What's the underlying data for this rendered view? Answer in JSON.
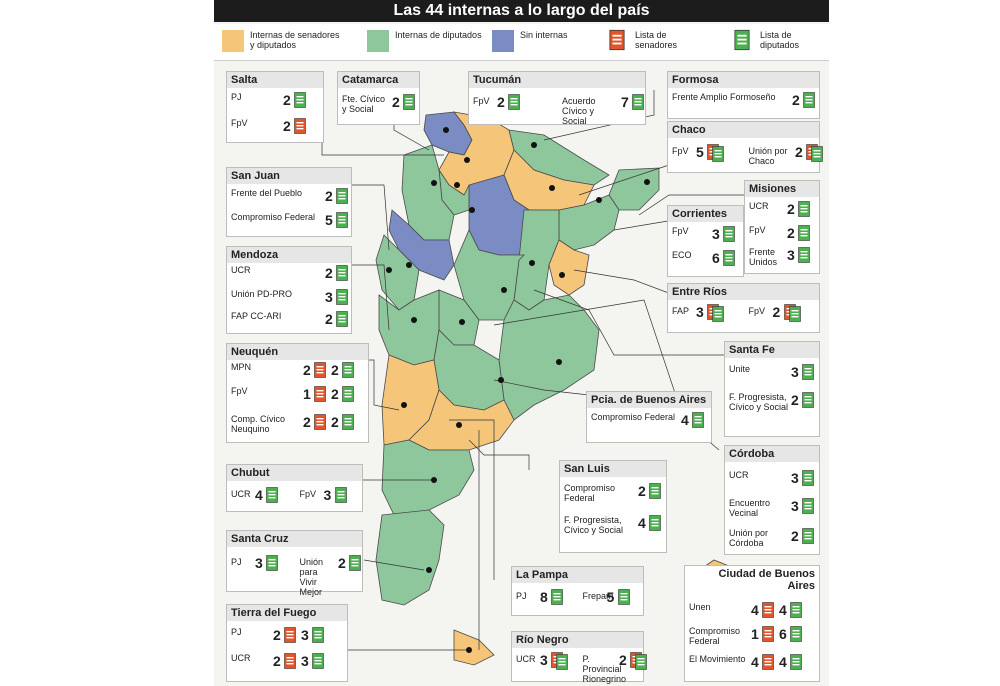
{
  "title": "Las 44 internas a lo largo del país",
  "legend": [
    {
      "label": "Internas de senadores y diputados",
      "color": "#f5c57a",
      "icon": "swatch"
    },
    {
      "label": "Internas de diputados",
      "color": "#8fc79c",
      "icon": "swatch"
    },
    {
      "label": "Sin internas",
      "color": "#7b8bc4",
      "icon": "swatch"
    },
    {
      "label": "Lista de senadores",
      "color": "#e0552b",
      "icon": "document-icon"
    },
    {
      "label": "Lista de diputados",
      "color": "#4caf50",
      "icon": "document-icon"
    }
  ],
  "provinces": {
    "salta": {
      "name": "Salta",
      "rows": [
        {
          "label": "PJ",
          "items": [
            {
              "n": "2",
              "type": "dip"
            }
          ]
        },
        {
          "label": "FpV",
          "items": [
            {
              "n": "2",
              "type": "sen"
            }
          ]
        }
      ]
    },
    "catamarca": {
      "name": "Catamarca",
      "rows": [
        {
          "label": "Fte. Cívico y Social",
          "items": [
            {
              "n": "2",
              "type": "dip"
            }
          ]
        }
      ]
    },
    "tucuman": {
      "name": "Tucumán",
      "rows": [
        {
          "label": "FpV",
          "items": [
            {
              "n": "2",
              "type": "dip"
            }
          ]
        },
        {
          "label": "Acuerdo Cívico y Social",
          "items": [
            {
              "n": "7",
              "type": "dip"
            }
          ]
        }
      ]
    },
    "formosa": {
      "name": "Formosa",
      "rows": [
        {
          "label": "Frente Amplio Formoseño",
          "items": [
            {
              "n": "2",
              "type": "dip"
            }
          ]
        }
      ]
    },
    "chaco": {
      "name": "Chaco",
      "rows": [
        {
          "label": "FpV",
          "items": [
            {
              "n": "5",
              "type": "both"
            }
          ]
        },
        {
          "label": "Unión por Chaco",
          "items": [
            {
              "n": "2",
              "type": "both"
            }
          ]
        }
      ]
    },
    "sanjuan": {
      "name": "San Juan",
      "rows": [
        {
          "label": "Frente del Pueblo",
          "items": [
            {
              "n": "2",
              "type": "dip"
            }
          ]
        },
        {
          "label": "Compromiso Federal",
          "items": [
            {
              "n": "5",
              "type": "dip"
            }
          ]
        }
      ]
    },
    "misiones": {
      "name": "Misiones",
      "rows": [
        {
          "label": "UCR",
          "items": [
            {
              "n": "2",
              "type": "dip"
            }
          ]
        },
        {
          "label": "FpV",
          "items": [
            {
              "n": "2",
              "type": "dip"
            }
          ]
        },
        {
          "label": "Frente Unidos",
          "items": [
            {
              "n": "3",
              "type": "dip"
            }
          ]
        }
      ]
    },
    "corrientes": {
      "name": "Corrientes",
      "rows": [
        {
          "label": "FpV",
          "items": [
            {
              "n": "3",
              "type": "dip"
            }
          ]
        },
        {
          "label": "ECO",
          "items": [
            {
              "n": "6",
              "type": "dip"
            }
          ]
        }
      ]
    },
    "mendoza": {
      "name": "Mendoza",
      "rows": [
        {
          "label": "UCR",
          "items": [
            {
              "n": "2",
              "type": "dip"
            }
          ]
        },
        {
          "label": "Unión PD-PRO",
          "items": [
            {
              "n": "3",
              "type": "dip"
            }
          ]
        },
        {
          "label": "FAP CC-ARI",
          "items": [
            {
              "n": "2",
              "type": "dip"
            }
          ]
        }
      ]
    },
    "entrerios": {
      "name": "Entre Ríos",
      "rows": [
        {
          "label": "FAP",
          "items": [
            {
              "n": "3",
              "type": "both"
            }
          ]
        },
        {
          "label": "FpV",
          "items": [
            {
              "n": "2",
              "type": "both"
            }
          ]
        }
      ]
    },
    "neuquen": {
      "name": "Neuquén",
      "rows": [
        {
          "label": "MPN",
          "items": [
            {
              "n": "2",
              "type": "sen"
            },
            {
              "n": "2",
              "type": "dip"
            }
          ]
        },
        {
          "label": "FpV",
          "items": [
            {
              "n": "1",
              "type": "sen"
            },
            {
              "n": "2",
              "type": "dip"
            }
          ]
        },
        {
          "label": "Comp. Cívico Neuquino",
          "items": [
            {
              "n": "2",
              "type": "sen"
            },
            {
              "n": "2",
              "type": "dip"
            }
          ]
        }
      ]
    },
    "santafe": {
      "name": "Santa Fe",
      "rows": [
        {
          "label": "Unite",
          "items": [
            {
              "n": "3",
              "type": "dip"
            }
          ]
        },
        {
          "label": "F. Progresista, Cívico y Social",
          "items": [
            {
              "n": "2",
              "type": "dip"
            }
          ]
        }
      ]
    },
    "bsas": {
      "name": "Pcia. de Buenos Aires",
      "rows": [
        {
          "label": "Compromiso Federal",
          "items": [
            {
              "n": "4",
              "type": "dip"
            }
          ]
        }
      ]
    },
    "chubut": {
      "name": "Chubut",
      "rows": [
        {
          "label": "UCR",
          "items": [
            {
              "n": "4",
              "type": "dip"
            }
          ]
        },
        {
          "label": "FpV",
          "items": [
            {
              "n": "3",
              "type": "dip"
            }
          ]
        }
      ]
    },
    "cordoba": {
      "name": "Córdoba",
      "rows": [
        {
          "label": "UCR",
          "items": [
            {
              "n": "3",
              "type": "dip"
            }
          ]
        },
        {
          "label": "Encuentro Vecinal",
          "items": [
            {
              "n": "3",
              "type": "dip"
            }
          ]
        },
        {
          "label": "Unión por Córdoba",
          "items": [
            {
              "n": "2",
              "type": "dip"
            }
          ]
        }
      ]
    },
    "sanluis": {
      "name": "San Luis",
      "rows": [
        {
          "label": "Compromiso Federal",
          "items": [
            {
              "n": "2",
              "type": "dip"
            }
          ]
        },
        {
          "label": "F. Progresista, Cívico y Social",
          "items": [
            {
              "n": "4",
              "type": "dip"
            }
          ]
        }
      ]
    },
    "santacruz": {
      "name": "Santa Cruz",
      "rows": [
        {
          "label": "PJ",
          "items": [
            {
              "n": "3",
              "type": "dip"
            }
          ]
        },
        {
          "label": "Unión para Vivir Mejor",
          "items": [
            {
              "n": "2",
              "type": "dip"
            }
          ]
        }
      ]
    },
    "caba": {
      "name": "Ciudad de Buenos Aires",
      "rows": [
        {
          "label": "Unen",
          "items": [
            {
              "n": "4",
              "type": "sen"
            },
            {
              "n": "4",
              "type": "dip"
            }
          ]
        },
        {
          "label": "Compromiso Federal",
          "items": [
            {
              "n": "1",
              "type": "sen"
            },
            {
              "n": "6",
              "type": "dip"
            }
          ]
        },
        {
          "label": "El Movimiento",
          "items": [
            {
              "n": "4",
              "type": "sen"
            },
            {
              "n": "4",
              "type": "dip"
            }
          ]
        }
      ]
    },
    "lapampa": {
      "name": "La Pampa",
      "rows": [
        {
          "label": "PJ",
          "items": [
            {
              "n": "8",
              "type": "dip"
            }
          ]
        },
        {
          "label": "Frepam",
          "items": [
            {
              "n": "5",
              "type": "dip"
            }
          ]
        }
      ]
    },
    "tierradelfuego": {
      "name": "Tierra del Fuego",
      "rows": [
        {
          "label": "PJ",
          "items": [
            {
              "n": "2",
              "type": "sen"
            },
            {
              "n": "3",
              "type": "dip"
            }
          ]
        },
        {
          "label": "UCR",
          "items": [
            {
              "n": "2",
              "type": "sen"
            },
            {
              "n": "3",
              "type": "dip"
            }
          ]
        }
      ]
    },
    "rionegro": {
      "name": "Río Negro",
      "rows": [
        {
          "label": "UCR",
          "items": [
            {
              "n": "3",
              "type": "both"
            }
          ]
        },
        {
          "label": "P. Provincial Rionegrino",
          "items": [
            {
              "n": "2",
              "type": "both"
            }
          ]
        }
      ]
    }
  },
  "colors": {
    "orange": "#f5c57a",
    "green": "#8fc79c",
    "blue": "#7b8bc4",
    "sen": "#e0552b",
    "dip": "#4caf50"
  }
}
